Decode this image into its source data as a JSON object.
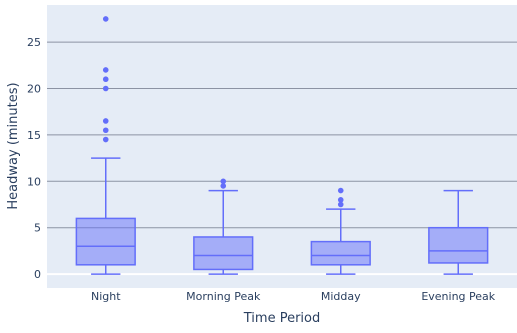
{
  "chart_data": {
    "type": "box",
    "title": "",
    "xlabel": "Time Period",
    "ylabel": "Headway (minutes)",
    "categories": [
      "Night",
      "Morning Peak",
      "Midday",
      "Evening Peak"
    ],
    "ylim": [
      -1.5,
      29
    ],
    "yticks": [
      0,
      5,
      10,
      15,
      20,
      25
    ],
    "grid": true,
    "legend": "none",
    "colors": {
      "plot_bg": "#e5ecf6",
      "grid": "#8c93a3",
      "box_line": "#636efa",
      "box_fill": "#636efa",
      "text": "#2a3f5f"
    },
    "boxes": [
      {
        "category": "Night",
        "min": 0,
        "q1": 1,
        "median": 3,
        "q3": 6,
        "upper_fence": 12.5,
        "outliers": [
          14.5,
          15.5,
          16.5,
          20,
          21,
          22,
          27.5
        ]
      },
      {
        "category": "Morning Peak",
        "min": 0,
        "q1": 0.5,
        "median": 2,
        "q3": 4,
        "upper_fence": 9,
        "outliers": [
          9.5,
          10
        ]
      },
      {
        "category": "Midday",
        "min": 0,
        "q1": 1,
        "median": 2,
        "q3": 3.5,
        "upper_fence": 7,
        "outliers": [
          7.5,
          8,
          9
        ]
      },
      {
        "category": "Evening Peak",
        "min": 0,
        "q1": 1.2,
        "median": 2.5,
        "q3": 5,
        "upper_fence": 9,
        "outliers": []
      }
    ]
  }
}
